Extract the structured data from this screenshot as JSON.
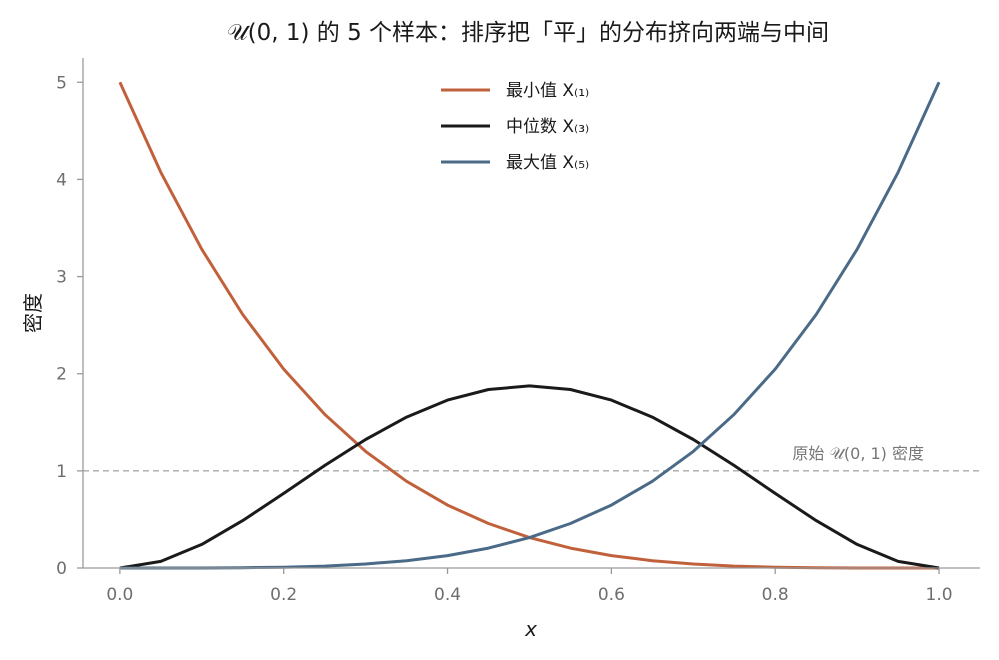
{
  "chart_data": {
    "type": "line",
    "title": "𝒰(0, 1) 的 5 个样本：排序把「平」的分布挤向两端与中间",
    "xlabel": "x",
    "ylabel": "密度",
    "xlim": [
      -0.045,
      1.05
    ],
    "ylim": [
      0,
      5.25
    ],
    "x_ticks": [
      "0.0",
      "0.2",
      "0.4",
      "0.6",
      "0.8",
      "1.0"
    ],
    "y_ticks": [
      "0",
      "1",
      "2",
      "3",
      "4",
      "5"
    ],
    "grid": false,
    "legend_position": "top-center",
    "x": [
      0.0,
      0.05,
      0.1,
      0.15,
      0.2,
      0.25,
      0.3,
      0.35,
      0.4,
      0.45,
      0.5,
      0.55,
      0.6,
      0.65,
      0.7,
      0.75,
      0.8,
      0.85,
      0.9,
      0.95,
      1.0
    ],
    "series": [
      {
        "name": "最小值 X₍₁₎",
        "color": "#c1613b",
        "values": [
          5.0,
          4.073,
          3.281,
          2.61,
          2.048,
          1.582,
          1.2,
          0.893,
          0.648,
          0.458,
          0.313,
          0.205,
          0.128,
          0.075,
          0.041,
          0.02,
          0.008,
          0.003,
          0.0005,
          3e-05,
          0.0
        ]
      },
      {
        "name": "中位数 X₍₃₎",
        "color": "#1a1a1a",
        "values": [
          0.0,
          0.068,
          0.243,
          0.488,
          0.768,
          1.055,
          1.323,
          1.553,
          1.728,
          1.838,
          1.875,
          1.838,
          1.728,
          1.553,
          1.323,
          1.055,
          0.768,
          0.488,
          0.243,
          0.068,
          0.0
        ]
      },
      {
        "name": "最大值 X₍₅₎",
        "color": "#4a6a87",
        "values": [
          0.0,
          3e-05,
          0.0005,
          0.003,
          0.008,
          0.02,
          0.041,
          0.075,
          0.128,
          0.205,
          0.313,
          0.458,
          0.648,
          0.893,
          1.2,
          1.582,
          2.048,
          2.61,
          3.281,
          4.073,
          5.0
        ]
      }
    ],
    "reference_line": {
      "y": 1,
      "label": "原始 𝒰(0, 1) 密度",
      "color": "#aaaaaa"
    }
  }
}
